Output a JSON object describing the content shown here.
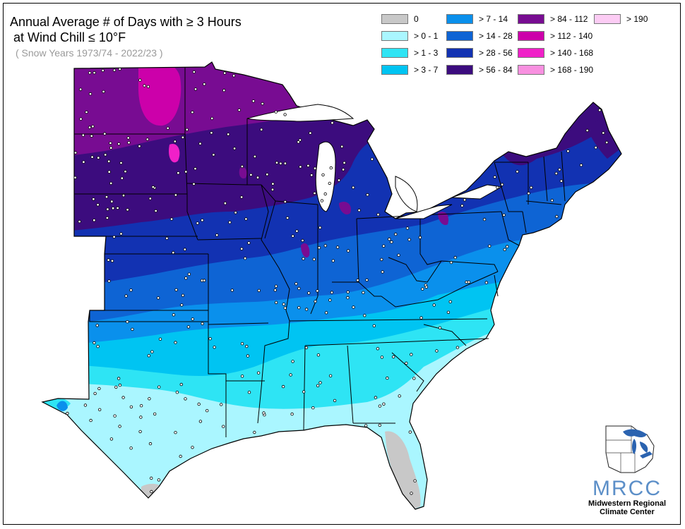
{
  "title": {
    "line1": "Annual Average # of Days with ≥ 3 Hours",
    "line2": " at Wind Chill ≤ 10°F",
    "subtitle": "( Snow Years 1973/74 - 2022/23 )"
  },
  "legend": [
    {
      "label": "0",
      "color": "#c8c8c8"
    },
    {
      "label": "> 0 - 1",
      "color": "#aaf6ff"
    },
    {
      "label": "> 1 - 3",
      "color": "#2ee4f4"
    },
    {
      "label": "> 3 - 7",
      "color": "#00c4f2"
    },
    {
      "label": "> 7 - 14",
      "color": "#0a90ec"
    },
    {
      "label": "> 14 - 28",
      "color": "#0e64d4"
    },
    {
      "label": "> 28 - 56",
      "color": "#1232b2"
    },
    {
      "label": "> 56 - 84",
      "color": "#3c0c7e"
    },
    {
      "label": "> 84 - 112",
      "color": "#780c92"
    },
    {
      "label": "> 112 - 140",
      "color": "#cc00aa"
    },
    {
      "label": "> 140 - 168",
      "color": "#f020c8"
    },
    {
      "label": "> 168 - 190",
      "color": "#f890e0"
    },
    {
      "label": "> 190",
      "color": "#fcccf4"
    }
  ],
  "logo": {
    "acronym": "MRCC",
    "line1": "Midwestern Regional",
    "line2": "Climate Center"
  }
}
